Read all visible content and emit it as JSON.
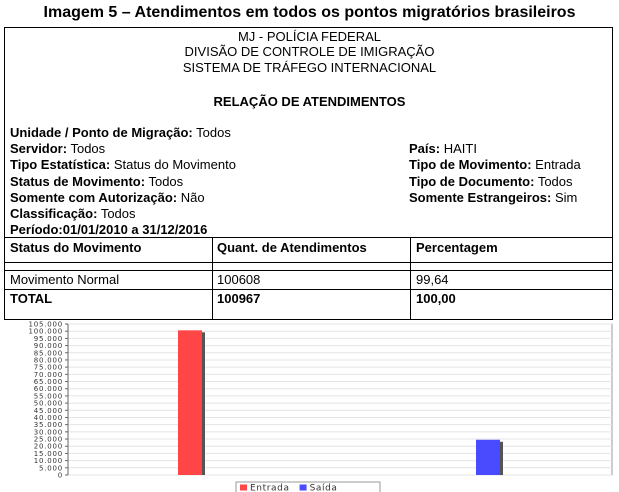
{
  "header": {
    "title": "Imagem 5 – Atendimentos em todos os pontos migratórios brasileiros",
    "lines": [
      "MJ - POLÍCIA FEDERAL",
      "DIVISÃO DE CONTROLE DE IMIGRAÇÃO",
      "SISTEMA DE TRÁFEGO INTERNACIONAL"
    ],
    "report_title": "RELAÇÃO DE ATENDIMENTOS"
  },
  "fields": {
    "left": [
      {
        "label": "Unidade / Ponto de Migração:",
        "value": "Todos"
      },
      {
        "label": "Servidor:",
        "value": "Todos"
      },
      {
        "label": "Tipo Estatística:",
        "value": "Status do Movimento"
      },
      {
        "label": "Status de Movimento:",
        "value": "Todos"
      },
      {
        "label": "Somente com Autorização:",
        "value": "Não"
      },
      {
        "label": "Classificação:",
        "value": "Todos"
      },
      {
        "label": "Período:",
        "value": "01/01/2010 a 31/12/2016"
      }
    ],
    "right": [
      {
        "label": "País:",
        "value": "HAITI"
      },
      {
        "label": "Tipo de Movimento:",
        "value": "Entrada"
      },
      {
        "label": "Tipo de Documento:",
        "value": "Todos"
      },
      {
        "label": "Somente Estrangeiros:",
        "value": "Sim"
      }
    ]
  },
  "table": {
    "header": [
      "Status do Movimento",
      "Quant. de Atendimentos",
      "Percentagem"
    ],
    "rows": [
      [
        "Movimento Normal",
        "100608",
        "99,64"
      ],
      [
        "TOTAL",
        "100967",
        "100,00"
      ]
    ]
  },
  "chart_data": {
    "type": "bar",
    "categories": [
      null,
      null
    ],
    "series": [
      {
        "name": "Entrada",
        "color": "#ff4646",
        "values": [
          100600,
          null
        ]
      },
      {
        "name": "Saída",
        "color": "#4a4aff",
        "values": [
          null,
          24500
        ]
      }
    ],
    "ylim": [
      0,
      105000
    ],
    "yticks": [
      0,
      {
        "value": 5000,
        "label": "5.000"
      },
      {
        "value": 10000,
        "label": "10.000"
      },
      {
        "value": 15000,
        "label": "15.000"
      },
      {
        "value": 20000,
        "label": "20.000"
      },
      {
        "value": 25000,
        "label": "25.000"
      },
      {
        "value": 30000,
        "label": "30.000"
      },
      {
        "value": 35000,
        "label": "35.000"
      },
      {
        "value": 40000,
        "label": "40.000"
      },
      {
        "value": 45000,
        "label": "45.000"
      },
      {
        "value": 50000,
        "label": "50.000"
      },
      {
        "value": 55000,
        "label": "55.000"
      },
      {
        "value": 60000,
        "label": "60.000"
      },
      {
        "value": 65000,
        "label": "65.000"
      },
      {
        "value": 70000,
        "label": "70.000"
      },
      {
        "value": 75000,
        "label": "75.000"
      },
      {
        "value": 80000,
        "label": "80.000"
      },
      {
        "value": 85000,
        "label": "85.000"
      },
      {
        "value": 90000,
        "label": "90.000"
      },
      {
        "value": 95000,
        "label": "95.000"
      },
      {
        "value": 100000,
        "label": "100.000"
      },
      {
        "value": 105000,
        "label": "105.000"
      }
    ],
    "grid": true,
    "legend": "bottom"
  }
}
